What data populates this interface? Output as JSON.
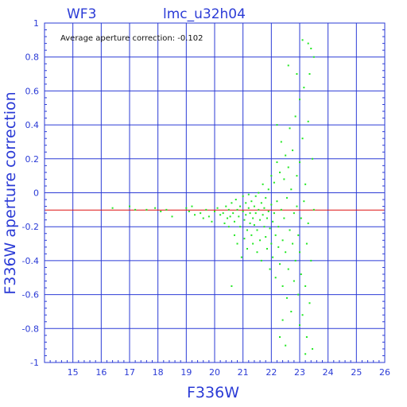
{
  "chart_data": {
    "type": "scatter",
    "instrument_label": "WF3",
    "title": "lmc_u32h04",
    "xlabel": "F336W",
    "ylabel": "F336W aperture correction",
    "annotation": "Average aperture correction: -0.102",
    "xlim": [
      14,
      26
    ],
    "ylim": [
      -1,
      1
    ],
    "xticks": [
      15,
      16,
      17,
      18,
      19,
      20,
      21,
      22,
      23,
      24,
      25,
      26
    ],
    "yticks": [
      -1,
      -0.8,
      -0.6,
      -0.4,
      -0.2,
      0,
      0.2,
      0.4,
      0.6,
      0.8,
      1
    ],
    "ytick_labels": [
      "-1",
      "-0.8",
      "-0.6",
      "-0.4",
      "-0.2",
      "0",
      "0.2",
      "0.4",
      "0.6",
      "0.8",
      "1"
    ],
    "reference_line": {
      "y": -0.102,
      "color": "#dd1111"
    },
    "grid": true,
    "colors": {
      "axes": "#2b3bd6",
      "points": "#22e822",
      "reference": "#dd1111"
    },
    "series": [
      {
        "points": [
          [
            16.4,
            -0.09
          ],
          [
            17.0,
            -0.08
          ],
          [
            17.2,
            -0.1
          ],
          [
            17.6,
            -0.1
          ],
          [
            17.9,
            -0.09
          ],
          [
            18.1,
            -0.11
          ],
          [
            18.3,
            -0.1
          ],
          [
            18.5,
            -0.14
          ],
          [
            19.0,
            -0.09
          ],
          [
            19.1,
            -0.11
          ],
          [
            19.2,
            -0.08
          ],
          [
            19.3,
            -0.13
          ],
          [
            19.5,
            -0.12
          ],
          [
            19.6,
            -0.15
          ],
          [
            19.7,
            -0.1
          ],
          [
            19.8,
            -0.14
          ],
          [
            19.9,
            -0.17
          ],
          [
            20.0,
            -0.11
          ],
          [
            20.1,
            -0.09
          ],
          [
            20.2,
            -0.13
          ],
          [
            20.3,
            -0.12
          ],
          [
            20.35,
            -0.18
          ],
          [
            20.4,
            -0.08
          ],
          [
            20.45,
            -0.15
          ],
          [
            20.5,
            -0.1
          ],
          [
            20.5,
            -0.2
          ],
          [
            20.55,
            -0.14
          ],
          [
            20.6,
            -0.06
          ],
          [
            20.6,
            -0.55
          ],
          [
            20.65,
            -0.12
          ],
          [
            20.7,
            -0.17
          ],
          [
            20.7,
            -0.25
          ],
          [
            20.75,
            -0.04
          ],
          [
            20.8,
            -0.1
          ],
          [
            20.8,
            -0.3
          ],
          [
            20.85,
            -0.14
          ],
          [
            20.9,
            -0.08
          ],
          [
            20.9,
            -0.2
          ],
          [
            20.95,
            -0.38
          ],
          [
            21.0,
            -0.11
          ],
          [
            21.0,
            -0.02
          ],
          [
            21.05,
            -0.16
          ],
          [
            21.05,
            -0.27
          ],
          [
            21.1,
            -0.06
          ],
          [
            21.1,
            -0.13
          ],
          [
            21.15,
            -0.22
          ],
          [
            21.15,
            -0.33
          ],
          [
            21.2,
            -0.09
          ],
          [
            21.2,
            -0.01
          ],
          [
            21.25,
            -0.18
          ],
          [
            21.25,
            -0.12
          ],
          [
            21.3,
            -0.05
          ],
          [
            21.3,
            -0.25
          ],
          [
            21.35,
            -0.15
          ],
          [
            21.35,
            -0.3
          ],
          [
            21.4,
            -0.08
          ],
          [
            21.4,
            -0.19
          ],
          [
            21.45,
            -0.02
          ],
          [
            21.45,
            -0.12
          ],
          [
            21.5,
            -0.22
          ],
          [
            21.5,
            -0.35
          ],
          [
            21.55,
            -0.1
          ],
          [
            21.55,
            0.0
          ],
          [
            21.6,
            -0.16
          ],
          [
            21.6,
            -0.28
          ],
          [
            21.65,
            -0.06
          ],
          [
            21.65,
            -0.4
          ],
          [
            21.7,
            -0.13
          ],
          [
            21.7,
            0.05
          ],
          [
            21.75,
            -0.2
          ],
          [
            21.75,
            -0.09
          ],
          [
            21.8,
            -0.26
          ],
          [
            21.8,
            -0.03
          ],
          [
            21.85,
            -0.15
          ],
          [
            21.85,
            -0.33
          ],
          [
            21.9,
            0.02
          ],
          [
            21.9,
            -0.11
          ],
          [
            21.95,
            -0.21
          ],
          [
            21.95,
            -0.45
          ],
          [
            22.0,
            -0.07
          ],
          [
            22.0,
            0.1
          ],
          [
            22.0,
            -0.3
          ],
          [
            22.05,
            -0.17
          ],
          [
            22.05,
            -0.38
          ],
          [
            22.1,
            0.06
          ],
          [
            22.1,
            -0.12
          ],
          [
            22.15,
            -0.25
          ],
          [
            22.15,
            -0.5
          ],
          [
            22.2,
            0.18
          ],
          [
            22.2,
            -0.05
          ],
          [
            22.25,
            -0.32
          ],
          [
            22.25,
            -0.2
          ],
          [
            22.3,
            0.12
          ],
          [
            22.3,
            -0.42
          ],
          [
            22.35,
            -0.1
          ],
          [
            22.35,
            0.3
          ],
          [
            22.4,
            -0.28
          ],
          [
            22.4,
            -0.55
          ],
          [
            22.45,
            0.08
          ],
          [
            22.45,
            -0.15
          ],
          [
            22.5,
            -0.35
          ],
          [
            22.5,
            0.22
          ],
          [
            22.55,
            -0.62
          ],
          [
            22.55,
            -0.03
          ],
          [
            22.6,
            0.15
          ],
          [
            22.6,
            -0.45
          ],
          [
            22.65,
            -0.22
          ],
          [
            22.65,
            0.38
          ],
          [
            22.7,
            -0.7
          ],
          [
            22.7,
            0.02
          ],
          [
            22.75,
            -0.3
          ],
          [
            22.75,
            0.25
          ],
          [
            22.8,
            -0.12
          ],
          [
            22.8,
            -0.52
          ],
          [
            22.85,
            0.45
          ],
          [
            22.85,
            -0.4
          ],
          [
            22.9,
            -0.08
          ],
          [
            22.9,
            0.1
          ],
          [
            22.95,
            -0.25
          ],
          [
            22.95,
            -0.6
          ],
          [
            23.0,
            0.55
          ],
          [
            23.0,
            -0.35
          ],
          [
            23.0,
            0.18
          ],
          [
            23.05,
            -0.48
          ],
          [
            23.05,
            -0.15
          ],
          [
            23.1,
            0.32
          ],
          [
            23.1,
            -0.72
          ],
          [
            23.15,
            -0.05
          ],
          [
            23.15,
            0.62
          ],
          [
            23.2,
            -0.55
          ],
          [
            23.2,
            0.05
          ],
          [
            23.25,
            -0.3
          ],
          [
            23.25,
            -0.85
          ],
          [
            23.3,
            0.42
          ],
          [
            23.3,
            -0.18
          ],
          [
            23.35,
            0.7
          ],
          [
            23.35,
            -0.65
          ],
          [
            23.4,
            0.85
          ],
          [
            23.4,
            -0.4
          ],
          [
            23.45,
            0.2
          ],
          [
            23.45,
            -0.92
          ],
          [
            23.5,
            0.8
          ],
          [
            23.5,
            -0.1
          ],
          [
            22.3,
            -0.85
          ],
          [
            22.4,
            -0.75
          ],
          [
            22.5,
            -0.9
          ],
          [
            23.2,
            -0.95
          ],
          [
            22.6,
            0.75
          ],
          [
            23.1,
            0.9
          ],
          [
            23.3,
            0.88
          ],
          [
            22.9,
            0.7
          ],
          [
            23.0,
            -0.78
          ],
          [
            22.2,
            0.4
          ]
        ]
      }
    ]
  }
}
